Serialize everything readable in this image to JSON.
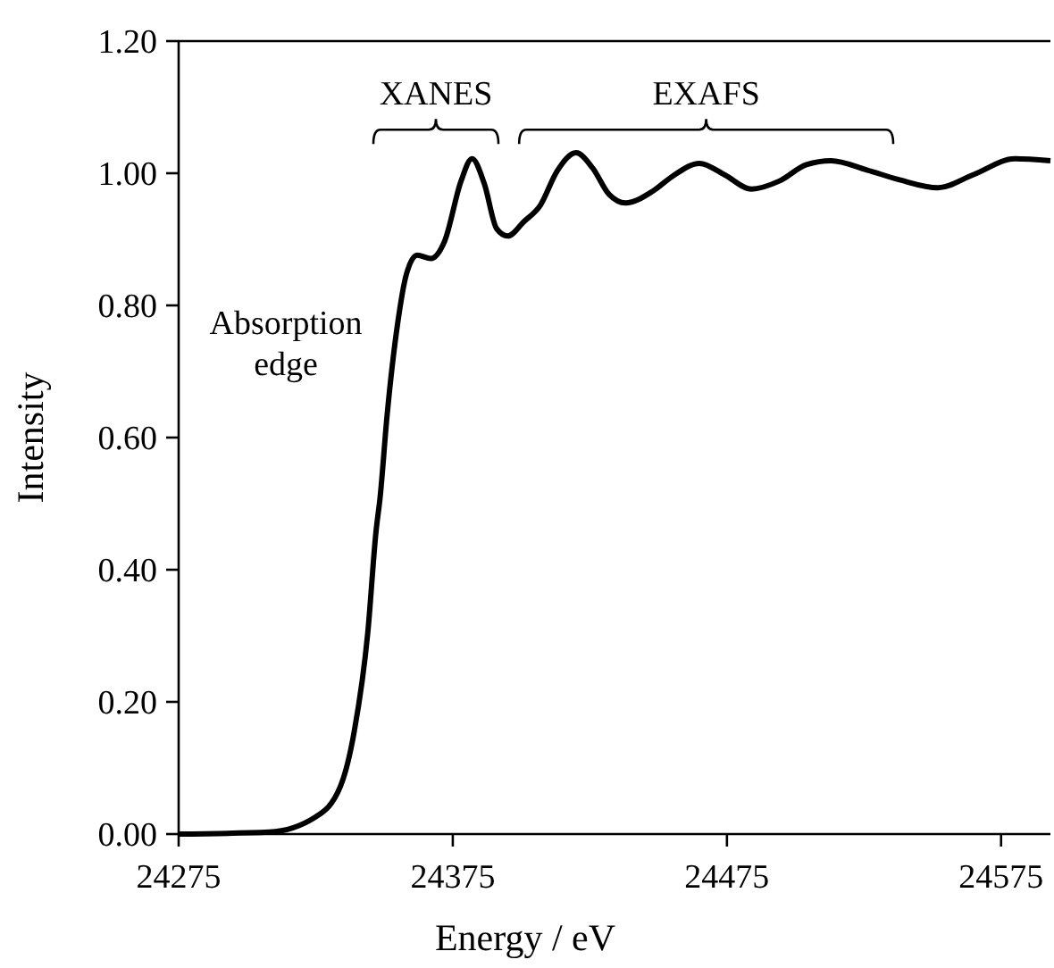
{
  "chart_data": {
    "type": "line",
    "xlabel": "Energy / eV",
    "ylabel": "Intensity",
    "xlim": [
      24275,
      24593
    ],
    "xticks": [
      24275,
      24375,
      24475,
      24575
    ],
    "ylim": [
      0,
      1.2
    ],
    "yticks": [
      {
        "value": 0,
        "label": "0.00"
      },
      {
        "value": 0.2,
        "label": "0.20"
      },
      {
        "value": 0.4,
        "label": "0.40"
      },
      {
        "value": 0.6,
        "label": "0.60"
      },
      {
        "value": 0.8,
        "label": "0.80"
      },
      {
        "value": 1,
        "label": "1.00"
      },
      {
        "value": 1.2,
        "label": "1.20"
      }
    ],
    "grid": false,
    "line_style": "solid",
    "series": [
      {
        "color": "#000000",
        "x": [
          24275,
          24308,
          24325,
          24334,
          24339,
          24344,
          24347,
          24348.5,
          24351,
          24355,
          24358,
          24362,
          24367,
          24372,
          24378,
          24382,
          24386.5,
          24391,
          24395,
          24401,
          24407,
          24413,
          24420,
          24426,
          24432,
          24438,
          24448,
          24455,
          24465,
          24474,
          24484,
          24494,
          24504,
          24513,
          24526,
          24538,
          24552,
          24565,
          24580,
          24593
        ],
        "values": [
          0,
          0.003,
          0.026,
          0.072,
          0.154,
          0.305,
          0.458,
          0.51,
          0.632,
          0.776,
          0.846,
          0.876,
          0.871,
          0.897,
          0.988,
          1.022,
          0.984,
          0.916,
          0.905,
          0.927,
          0.952,
          1.003,
          1.031,
          1.008,
          0.968,
          0.955,
          0.973,
          0.995,
          1.015,
          0.998,
          0.976,
          0.988,
          1.013,
          1.019,
          1.005,
          0.99,
          0.978,
          0.998,
          1.022,
          1.019
        ]
      }
    ],
    "annotations": [
      "XANES",
      "EXAFS",
      "Absorption edge"
    ]
  }
}
